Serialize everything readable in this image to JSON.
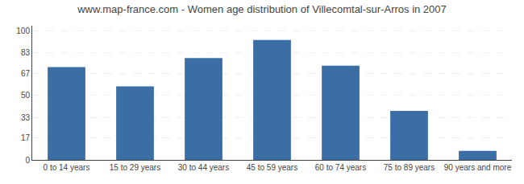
{
  "chart_data": {
    "type": "bar",
    "title": "www.map-france.com - Women age distribution of Villecomtal-sur-Arros in 2007",
    "categories": [
      "0 to 14 years",
      "15 to 29 years",
      "30 to 44 years",
      "45 to 59 years",
      "60 to 74 years",
      "75 to 89 years",
      "90 years and more"
    ],
    "values": [
      72,
      57,
      79,
      93,
      73,
      38,
      7
    ],
    "color": "#3A6EA5",
    "ylim": [
      0,
      104
    ],
    "yticks": [
      0,
      17,
      33,
      50,
      67,
      83,
      100
    ],
    "grid": true
  }
}
